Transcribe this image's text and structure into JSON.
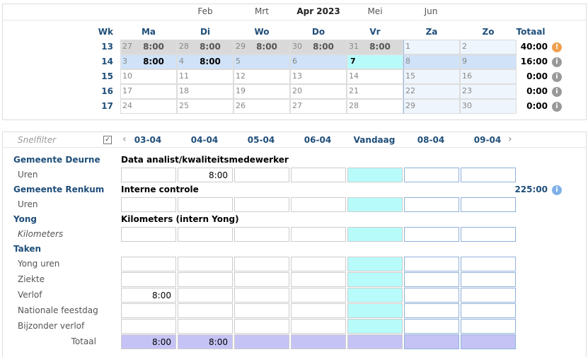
{
  "months": {
    "items": [
      "Feb",
      "Mrt",
      "Apr 2023",
      "Mei",
      "Jun"
    ],
    "active": 2
  },
  "calendar": {
    "headers": [
      "Wk",
      "Ma",
      "Di",
      "Wo",
      "Do",
      "Vr",
      "Za",
      "Zo",
      "Totaal"
    ],
    "weeks": [
      {
        "wk": 13,
        "total": "40:00",
        "warning": true,
        "days": [
          {
            "d": 27,
            "h": "8:00",
            "prev": true
          },
          {
            "d": 28,
            "h": "8:00",
            "prev": true
          },
          {
            "d": 29,
            "h": "8:00",
            "prev": true
          },
          {
            "d": 30,
            "h": "8:00",
            "prev": true
          },
          {
            "d": 31,
            "h": "8:00",
            "prev": true
          },
          {
            "d": 1
          },
          {
            "d": 2
          }
        ]
      },
      {
        "wk": 14,
        "total": "16:00",
        "selected": true,
        "days": [
          {
            "d": 3,
            "h": "8:00"
          },
          {
            "d": 4,
            "h": "8:00"
          },
          {
            "d": 5
          },
          {
            "d": 6
          },
          {
            "d": 7,
            "today": true
          },
          {
            "d": 8
          },
          {
            "d": 9
          }
        ]
      },
      {
        "wk": 15,
        "total": "0:00",
        "days": [
          {
            "d": 10
          },
          {
            "d": 11
          },
          {
            "d": 12
          },
          {
            "d": 13
          },
          {
            "d": 14
          },
          {
            "d": 15
          },
          {
            "d": 16
          }
        ]
      },
      {
        "wk": 16,
        "total": "0:00",
        "days": [
          {
            "d": 17
          },
          {
            "d": 18
          },
          {
            "d": 19
          },
          {
            "d": 20
          },
          {
            "d": 21
          },
          {
            "d": 22
          },
          {
            "d": 23
          }
        ]
      },
      {
        "wk": 17,
        "total": "0:00",
        "days": [
          {
            "d": 24
          },
          {
            "d": 25
          },
          {
            "d": 26
          },
          {
            "d": 27
          },
          {
            "d": 28
          },
          {
            "d": 29
          },
          {
            "d": 30
          }
        ]
      }
    ]
  },
  "timesheet": {
    "filter": "Snelfilter",
    "dates": [
      "03-04",
      "04-04",
      "05-04",
      "06-04",
      "Vandaag",
      "08-04",
      "09-04"
    ],
    "sections": [
      {
        "name": "Gemeente Deurne",
        "project": "Data analist/kwaliteitsmedewerker",
        "rows": [
          {
            "label": "Uren",
            "cells": [
              null,
              "8:00",
              null,
              null,
              null,
              null,
              null
            ]
          }
        ]
      },
      {
        "name": "Gemeente Renkum",
        "project": "Interne controle",
        "total": "225:00",
        "rows": [
          {
            "label": "Uren",
            "cells": [
              null,
              null,
              null,
              null,
              null,
              null,
              null
            ]
          }
        ]
      },
      {
        "name": "Yong",
        "project": "Kilometers (intern Yong)",
        "rows": [
          {
            "label": "Kilometers",
            "italic": true,
            "cells": [
              null,
              null,
              null,
              null,
              null,
              null,
              null
            ]
          }
        ]
      },
      {
        "name": "Taken",
        "rows": [
          {
            "label": "Yong uren",
            "cells": [
              null,
              null,
              null,
              null,
              null,
              null,
              null
            ]
          },
          {
            "label": "Ziekte",
            "cells": [
              null,
              null,
              null,
              null,
              null,
              null,
              null
            ]
          },
          {
            "label": "Verlof",
            "cells": [
              "8:00",
              null,
              null,
              null,
              null,
              null,
              null
            ]
          },
          {
            "label": "Nationale feestdag",
            "cells": [
              null,
              null,
              null,
              null,
              null,
              null,
              null
            ]
          },
          {
            "label": "Bijzonder verlof",
            "cells": [
              null,
              null,
              null,
              null,
              null,
              null,
              null
            ]
          }
        ]
      }
    ],
    "total": {
      "label": "Totaal",
      "cells": [
        "8:00",
        "8:00",
        null,
        null,
        null,
        null,
        null
      ]
    }
  }
}
